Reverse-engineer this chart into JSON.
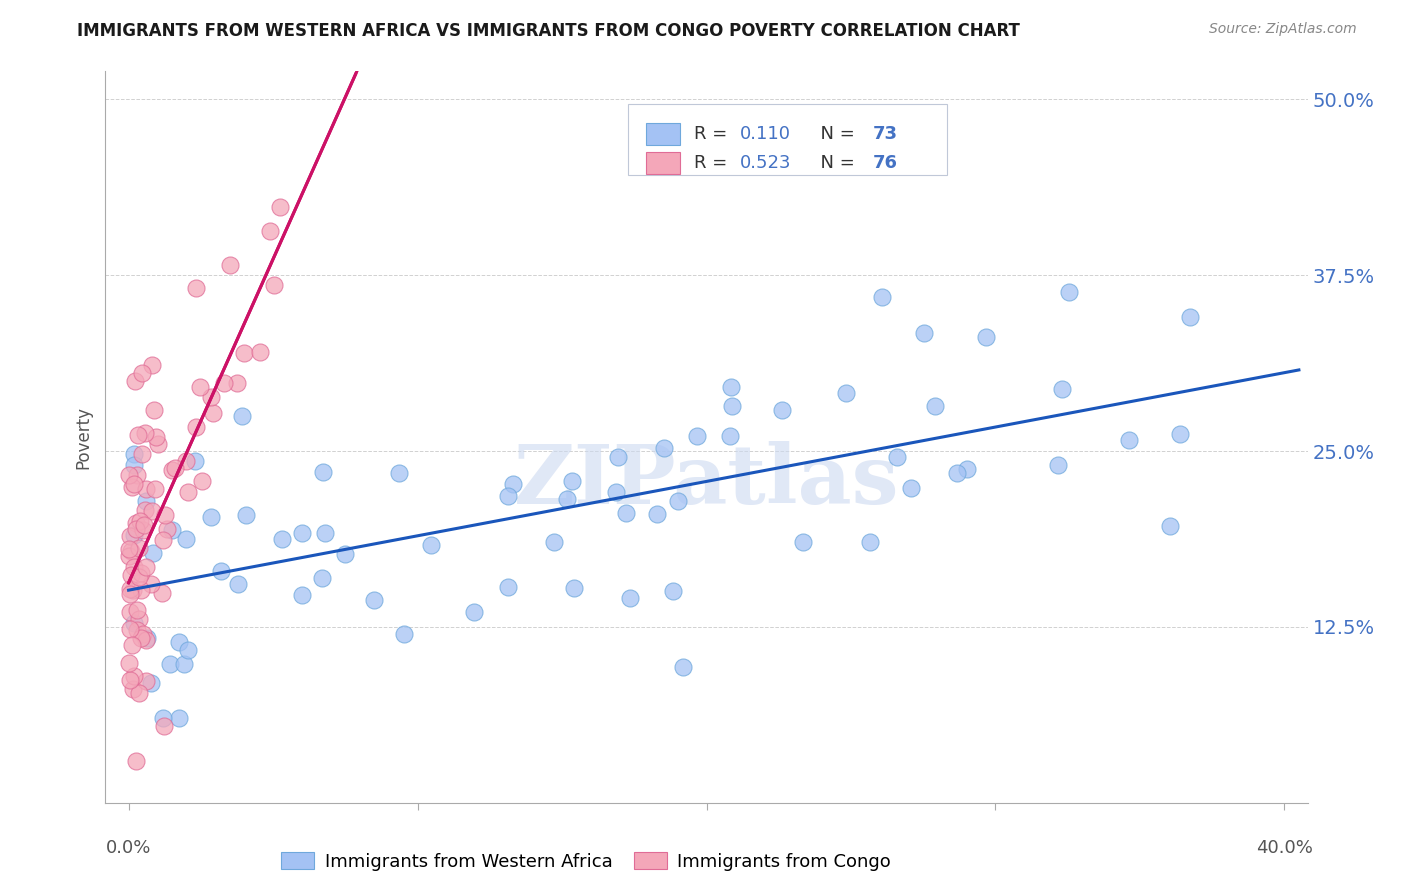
{
  "title": "IMMIGRANTS FROM WESTERN AFRICA VS IMMIGRANTS FROM CONGO POVERTY CORRELATION CHART",
  "source": "Source: ZipAtlas.com",
  "ylabel": "Poverty",
  "R_blue": 0.11,
  "N_blue": 73,
  "R_pink": 0.523,
  "N_pink": 76,
  "blue_color": "#a4c2f4",
  "pink_color": "#f4a7b9",
  "blue_edge_color": "#6fa8dc",
  "pink_edge_color": "#e06c96",
  "blue_line_color": "#1a56bb",
  "pink_line_color": "#cc1166",
  "watermark_color": "#ccd9f0",
  "right_label_color": "#4472c4",
  "legend_bg": "#f0f4fc",
  "legend_border": "#c0c8d8",
  "title_color": "#1a1a1a",
  "source_color": "#888888",
  "grid_color": "#cccccc",
  "spine_color": "#aaaaaa",
  "xlabel_color": "#555555",
  "ylabel_color": "#555555",
  "legend_R_color": "#222222",
  "legend_N_color": "#4472c4",
  "legend_val_color": "#4472c4"
}
